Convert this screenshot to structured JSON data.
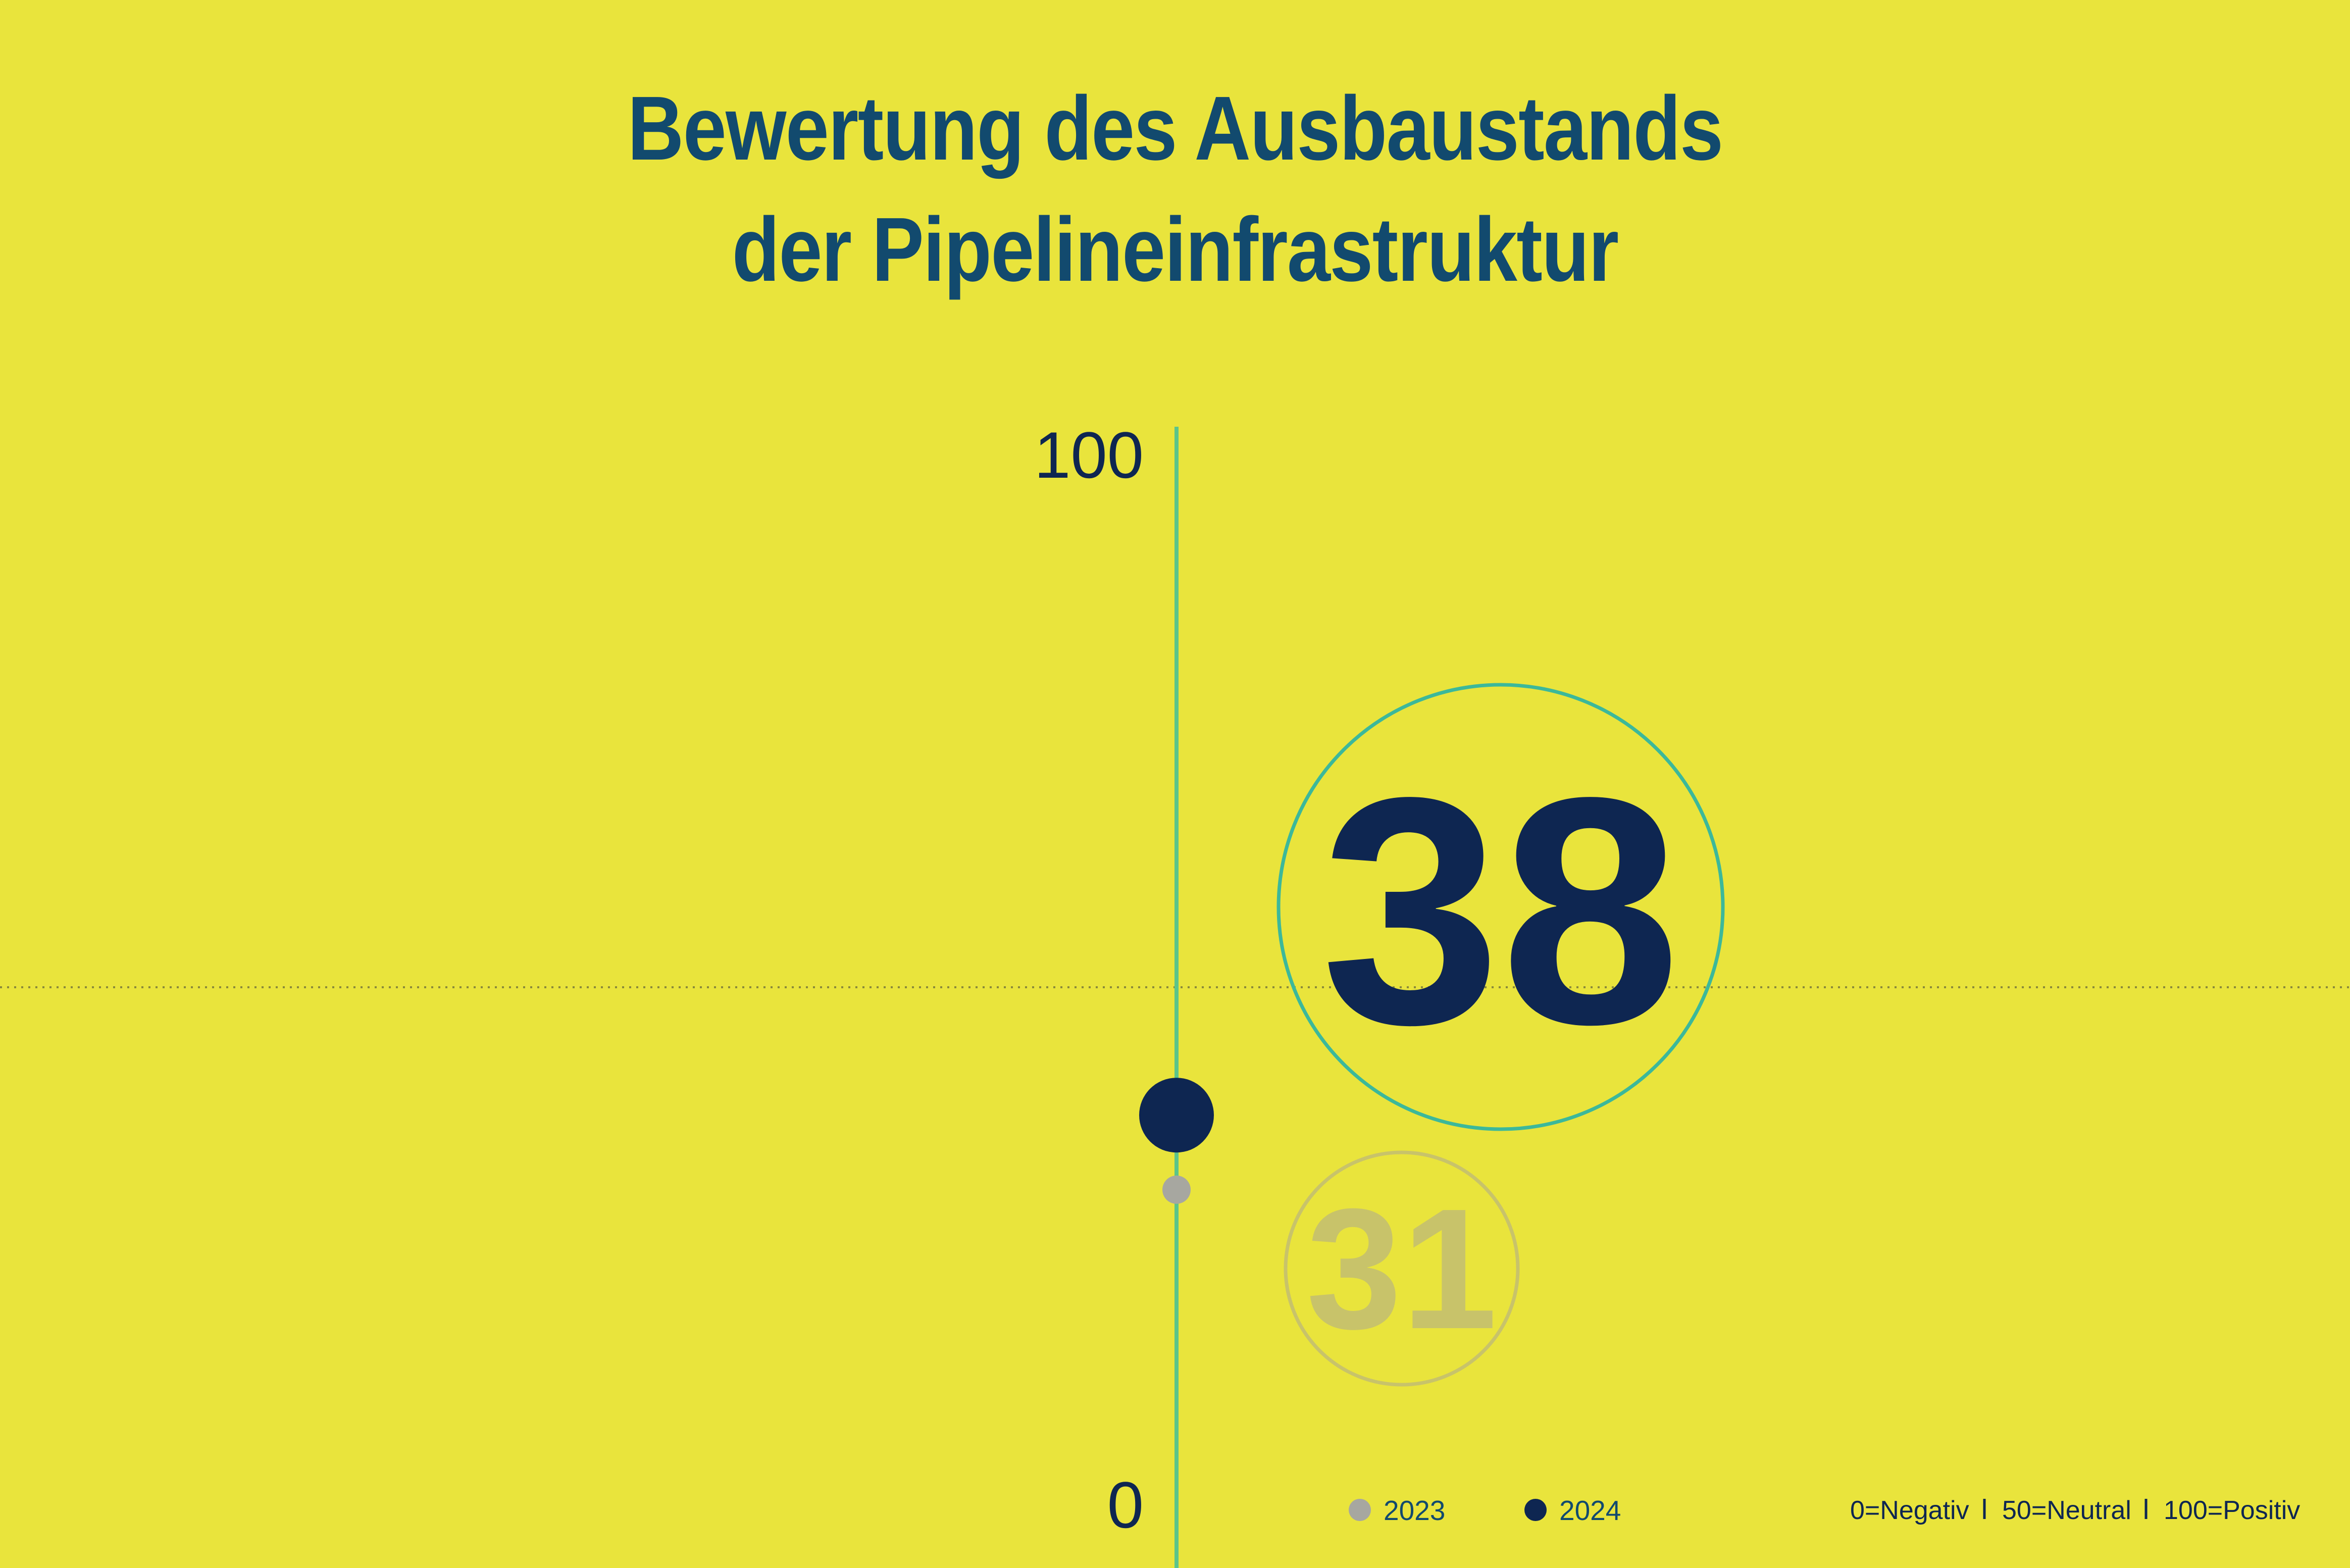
{
  "chart_data": {
    "type": "scatter",
    "title_lines": [
      "Bewertung des Ausbaustands",
      "der Pipelineinfrastruktur"
    ],
    "ylim": [
      0,
      100
    ],
    "y_ticks": [
      "0",
      "100"
    ],
    "neutral_line": 50,
    "series": [
      {
        "name": "2023",
        "value": 31,
        "label": "31",
        "color": "#a7a7a0",
        "label_color": "#c8c36a",
        "ring_color": "#c8c36a"
      },
      {
        "name": "2024",
        "value": 38,
        "label": "38",
        "color": "#0e2651",
        "label_color": "#0e2651",
        "ring_color": "#3cb89a"
      }
    ],
    "legend": {
      "position": "bottom-center",
      "items": [
        "2023",
        "2024"
      ]
    },
    "scale_note": [
      "0=Negativ",
      "50=Neutral",
      "100=Positiv"
    ]
  },
  "colors": {
    "background": "#e9e43c",
    "title": "#124a6e",
    "axis": "#5cc48a",
    "text": "#0e2651",
    "neutral_line": "#8a8a3a"
  }
}
